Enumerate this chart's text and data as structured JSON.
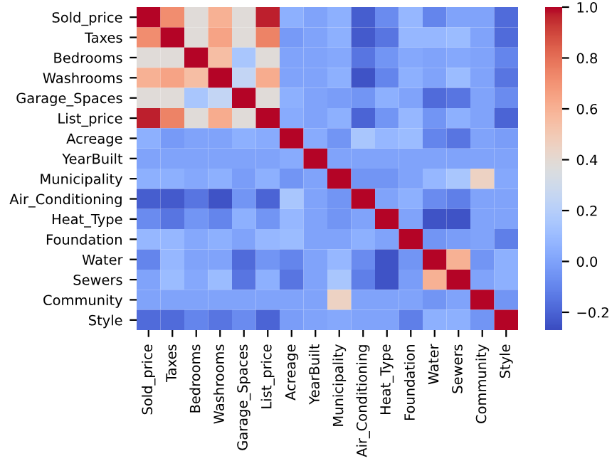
{
  "chart_data": {
    "type": "heatmap",
    "categories": [
      "Sold_price",
      "Taxes",
      "Bedrooms",
      "Washrooms",
      "Garage_Spaces",
      "List_price",
      "Acreage",
      "YearBuilt",
      "Municipality",
      "Air_Conditioning",
      "Heat_Type",
      "Foundation",
      "Water",
      "Sewers",
      "Community",
      "Style"
    ],
    "y_categories": [
      "Sold_price",
      "Taxes",
      "Bedrooms",
      "Washrooms",
      "Garage_Spaces",
      "List_price",
      "Acreage",
      "YearBuilt",
      "Municipality",
      "Air_Conditioning",
      "Heat_Type",
      "Foundation",
      "Water",
      "Sewers",
      "Community",
      "Style"
    ],
    "cells": [
      [
        1,
        0.72,
        0.38,
        0.6,
        0.38,
        0.97,
        0.05,
        0.0,
        0.05,
        -0.22,
        -0.08,
        0.08,
        -0.1,
        0.0,
        0.0,
        -0.18
      ],
      [
        0.72,
        1,
        0.38,
        0.65,
        0.38,
        0.75,
        -0.03,
        0.0,
        0.05,
        -0.23,
        -0.15,
        0.08,
        0.08,
        0.1,
        0.0,
        -0.18
      ],
      [
        0.38,
        0.38,
        1,
        0.55,
        0.15,
        0.38,
        0.0,
        0.0,
        0.02,
        -0.15,
        -0.05,
        0.02,
        0.0,
        0.02,
        0.0,
        -0.1
      ],
      [
        0.6,
        0.65,
        0.55,
        1,
        0.25,
        0.62,
        0.0,
        0.0,
        0.05,
        -0.25,
        -0.1,
        0.05,
        0.0,
        0.1,
        0.0,
        -0.15
      ],
      [
        0.38,
        0.38,
        0.15,
        0.25,
        1,
        0.38,
        0.05,
        0.0,
        -0.02,
        -0.05,
        0.05,
        0.0,
        -0.18,
        -0.15,
        0.0,
        -0.08
      ],
      [
        0.97,
        0.75,
        0.38,
        0.62,
        0.38,
        1,
        0.03,
        0.0,
        0.05,
        -0.2,
        -0.05,
        0.08,
        -0.05,
        0.05,
        0.0,
        -0.2
      ],
      [
        0.05,
        -0.03,
        0.0,
        0.0,
        0.05,
        0.03,
        1,
        0.03,
        -0.05,
        0.15,
        0.08,
        0.1,
        -0.1,
        -0.15,
        0.0,
        -0.02
      ],
      [
        0.0,
        0.0,
        0.0,
        0.0,
        0.0,
        0.0,
        0.03,
        1,
        0.0,
        0.0,
        0.0,
        0.0,
        0.0,
        0.0,
        0.0,
        0.0
      ],
      [
        0.05,
        0.05,
        0.02,
        0.05,
        -0.02,
        0.05,
        -0.05,
        0.0,
        1,
        -0.05,
        -0.05,
        0.0,
        0.08,
        0.15,
        0.45,
        0.02
      ],
      [
        -0.22,
        -0.23,
        -0.15,
        -0.25,
        -0.05,
        -0.2,
        0.15,
        0.0,
        -0.05,
        1,
        0.0,
        0.05,
        -0.08,
        -0.12,
        0.0,
        0.0
      ],
      [
        -0.08,
        -0.15,
        -0.05,
        -0.1,
        0.05,
        -0.05,
        0.08,
        0.0,
        -0.05,
        0.0,
        1,
        0.0,
        -0.25,
        -0.25,
        0.0,
        0.0
      ],
      [
        0.08,
        0.08,
        0.02,
        0.05,
        0.0,
        0.08,
        0.1,
        0.0,
        0.0,
        0.05,
        0.0,
        1,
        -0.05,
        -0.02,
        0.0,
        -0.12
      ],
      [
        -0.1,
        0.08,
        0.0,
        0.0,
        -0.18,
        -0.05,
        -0.1,
        0.0,
        0.08,
        -0.08,
        -0.25,
        -0.05,
        1,
        0.6,
        -0.05,
        0.05
      ],
      [
        0.0,
        0.1,
        0.02,
        0.1,
        -0.15,
        0.05,
        -0.15,
        0.0,
        0.15,
        -0.12,
        -0.25,
        -0.02,
        0.6,
        1,
        0.0,
        0.05
      ],
      [
        0.0,
        0.0,
        0.0,
        0.0,
        0.0,
        0.0,
        0.0,
        0.0,
        0.45,
        0.0,
        0.0,
        0.0,
        -0.05,
        0.0,
        1,
        -0.05
      ],
      [
        -0.18,
        -0.18,
        -0.1,
        -0.15,
        -0.08,
        -0.2,
        -0.02,
        0.0,
        0.02,
        0.0,
        0.0,
        -0.12,
        0.05,
        0.05,
        -0.05,
        1
      ]
    ],
    "clim": [
      -0.27,
      1.0
    ],
    "cticks": [
      {
        "value": -0.2,
        "label": "−0.2"
      },
      {
        "value": 0,
        "label": "0.0"
      },
      0.2,
      0.4,
      0.6,
      0.8,
      {
        "value": 1,
        "label": "1.0"
      }
    ]
  }
}
